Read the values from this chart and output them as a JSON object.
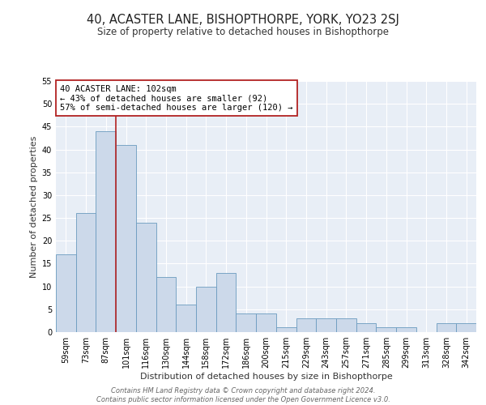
{
  "title": "40, ACASTER LANE, BISHOPTHORPE, YORK, YO23 2SJ",
  "subtitle": "Size of property relative to detached houses in Bishopthorpe",
  "xlabel": "Distribution of detached houses by size in Bishopthorpe",
  "ylabel": "Number of detached properties",
  "bar_labels": [
    "59sqm",
    "73sqm",
    "87sqm",
    "101sqm",
    "116sqm",
    "130sqm",
    "144sqm",
    "158sqm",
    "172sqm",
    "186sqm",
    "200sqm",
    "215sqm",
    "229sqm",
    "243sqm",
    "257sqm",
    "271sqm",
    "285sqm",
    "299sqm",
    "313sqm",
    "328sqm",
    "342sqm"
  ],
  "bar_values": [
    17,
    26,
    44,
    41,
    24,
    12,
    6,
    10,
    13,
    4,
    4,
    1,
    3,
    3,
    3,
    2,
    1,
    1,
    0,
    2,
    2
  ],
  "bar_color": "#ccd9ea",
  "bar_edgecolor": "#6a9bbf",
  "bar_linewidth": 0.6,
  "vline_color": "#b22222",
  "vline_index": 3,
  "annotation_title": "40 ACASTER LANE: 102sqm",
  "annotation_line1": "← 43% of detached houses are smaller (92)",
  "annotation_line2": "57% of semi-detached houses are larger (120) →",
  "annotation_box_edgecolor": "#b22222",
  "annotation_box_facecolor": "white",
  "ylim": [
    0,
    55
  ],
  "yticks": [
    0,
    5,
    10,
    15,
    20,
    25,
    30,
    35,
    40,
    45,
    50,
    55
  ],
  "background_color": "#e8eef6",
  "grid_color": "#ffffff",
  "title_fontsize": 10.5,
  "subtitle_fontsize": 8.5,
  "xlabel_fontsize": 8,
  "ylabel_fontsize": 8,
  "tick_fontsize": 7,
  "annotation_fontsize": 7.5,
  "footer_fontsize": 6,
  "footer_line1": "Contains HM Land Registry data © Crown copyright and database right 2024.",
  "footer_line2": "Contains public sector information licensed under the Open Government Licence v3.0."
}
